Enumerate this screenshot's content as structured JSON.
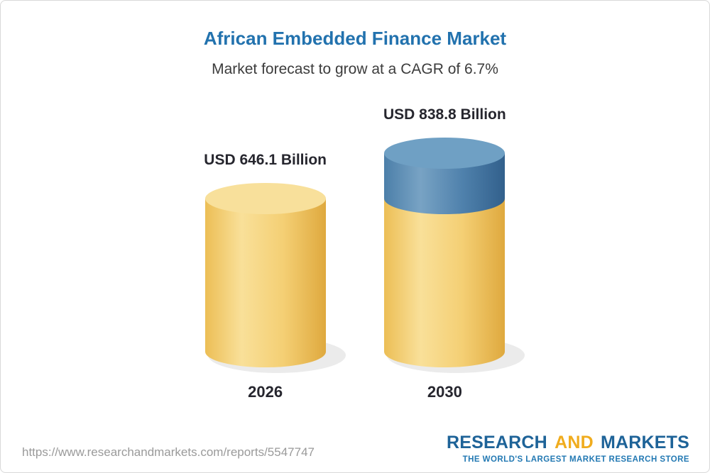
{
  "header": {
    "title": "African Embedded Finance Market",
    "subtitle": "Market forecast to grow at a CAGR of 6.7%"
  },
  "chart_data": {
    "type": "bar",
    "subtype": "3d-cylinder",
    "title": "African Embedded Finance Market",
    "subtitle": "Market forecast to grow at a CAGR of 6.7%",
    "cagr_percent": 6.7,
    "unit": "USD Billion",
    "categories": [
      "2026",
      "2030"
    ],
    "values": [
      646.1,
      838.8
    ],
    "value_labels": [
      "USD 646.1 Billion",
      "USD 838.8 Billion"
    ],
    "growth_segment": {
      "bar": "2030",
      "from": 646.1,
      "to": 838.8
    },
    "legend": false,
    "grid": false,
    "colors": {
      "base": "#F6CF6E",
      "base_light": "#F8E09B",
      "base_stops": [
        "#ECBE55",
        "#F9E099",
        "#F4CF74",
        "#DFA93E"
      ],
      "growth": "#4E82AF",
      "growth_light": "#6FA0C4",
      "growth_stops": [
        "#4C7FA9",
        "#78A3C4",
        "#4F81AC",
        "#32608C"
      ],
      "title": "#2272AE"
    }
  },
  "footer": {
    "url": "https://www.researchandmarkets.com/reports/5547747",
    "logo": {
      "research": "RESEARCH",
      "and": "AND",
      "markets": "MARKETS",
      "tagline": "THE WORLD'S LARGEST MARKET RESEARCH STORE"
    }
  }
}
